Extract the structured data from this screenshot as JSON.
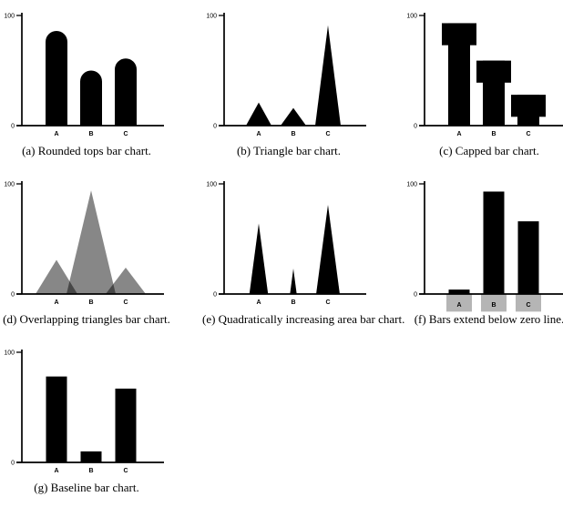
{
  "page": {
    "background_color": "#ffffff"
  },
  "style": {
    "axis_color": "#000000",
    "ytick_labels": [
      "0",
      "100"
    ]
  },
  "chart_data": [
    {
      "id": "a",
      "type": "bar",
      "variant": "rounded",
      "caption": "(a) Rounded tops bar chart.",
      "categories": [
        "A",
        "B",
        "C"
      ],
      "values": [
        86,
        50,
        61
      ],
      "ylim": [
        0,
        100
      ],
      "yticks": [
        0,
        100
      ],
      "bar_color": "#000000",
      "grid": false,
      "legend": false
    },
    {
      "id": "b",
      "type": "bar",
      "variant": "triangle",
      "caption": "(b) Triangle bar chart.",
      "categories": [
        "A",
        "B",
        "C"
      ],
      "values": [
        21,
        16,
        91
      ],
      "ylim": [
        0,
        100
      ],
      "yticks": [
        0,
        100
      ],
      "bar_color": "#000000",
      "grid": false,
      "legend": false
    },
    {
      "id": "c",
      "type": "bar",
      "variant": "capped",
      "caption": "(c) Capped bar chart.",
      "categories": [
        "A",
        "B",
        "C"
      ],
      "values": [
        93,
        59,
        28
      ],
      "cap_depth": 20,
      "ylim": [
        0,
        100
      ],
      "yticks": [
        0,
        100
      ],
      "bar_color": "#000000",
      "grid": false,
      "legend": false
    },
    {
      "id": "d",
      "type": "bar",
      "variant": "overlap-triangles",
      "caption": "(d) Overlapping triangles bar chart.",
      "categories": [
        "A",
        "B",
        "C"
      ],
      "values": [
        31,
        94,
        24
      ],
      "base_half_widths": [
        23,
        27,
        22
      ],
      "fill_opacity": 0.47,
      "ylim": [
        0,
        100
      ],
      "yticks": [
        0,
        100
      ],
      "bar_color": "#000000",
      "grid": false,
      "legend": false
    },
    {
      "id": "e",
      "type": "bar",
      "variant": "quad-area",
      "caption": "(e) Quadratically increasing area bar chart.",
      "categories": [
        "A",
        "B",
        "C"
      ],
      "values": [
        64,
        23,
        81
      ],
      "ylim": [
        0,
        100
      ],
      "yticks": [
        0,
        100
      ],
      "bar_color": "#000000",
      "grid": false,
      "legend": false
    },
    {
      "id": "f",
      "type": "bar",
      "variant": "below-zero",
      "caption": "(f) Bars extend below zero line.",
      "categories": [
        "A",
        "B",
        "C"
      ],
      "values": [
        4,
        93,
        66
      ],
      "below_extent": 16,
      "below_color": "#b5b5b5",
      "ylim": [
        0,
        100
      ],
      "yticks": [
        0,
        100
      ],
      "bar_color": "#000000",
      "grid": false,
      "legend": false
    },
    {
      "id": "g",
      "type": "bar",
      "variant": "baseline",
      "caption": "(g) Baseline bar chart.",
      "categories": [
        "A",
        "B",
        "C"
      ],
      "values": [
        78,
        10,
        67
      ],
      "ylim": [
        0,
        100
      ],
      "yticks": [
        0,
        100
      ],
      "bar_color": "#000000",
      "grid": false,
      "legend": false
    }
  ]
}
